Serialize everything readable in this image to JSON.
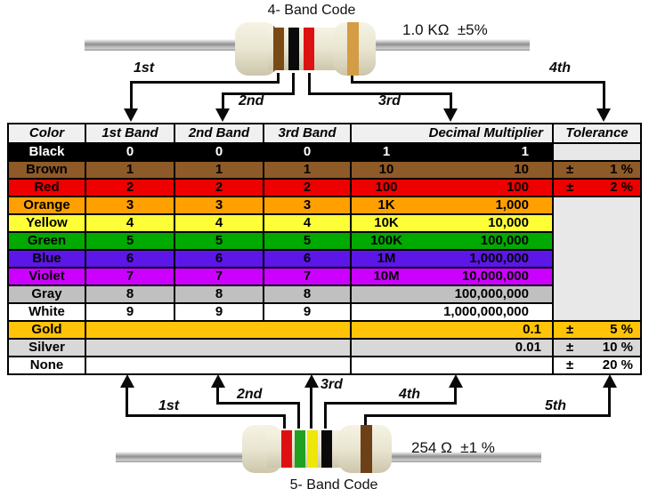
{
  "top_section": {
    "title": "4- Band Code",
    "value_label": "1.0 KΩ  ±5%",
    "arrow_labels": [
      "1st",
      "2nd",
      "3rd",
      "4th"
    ],
    "resistor_bands": [
      {
        "name": "brown",
        "hex": "#7a4a14"
      },
      {
        "name": "black",
        "hex": "#0a0a0a"
      },
      {
        "name": "red",
        "hex": "#dd1111"
      },
      {
        "name": "gold",
        "hex": "#d49c44"
      }
    ]
  },
  "bottom_section": {
    "title": "5- Band Code",
    "value_label": "254 Ω  ±1 %",
    "arrow_labels": [
      "1st",
      "2nd",
      "3rd",
      "4th",
      "5th"
    ],
    "resistor_bands": [
      {
        "name": "red",
        "hex": "#dd1111"
      },
      {
        "name": "green",
        "hex": "#22a022"
      },
      {
        "name": "yellow",
        "hex": "#efe707"
      },
      {
        "name": "black",
        "hex": "#0a0a0a"
      },
      {
        "name": "brown",
        "hex": "#6e4018"
      }
    ]
  },
  "table": {
    "headers": [
      "Color",
      "1st Band",
      "2nd Band",
      "3rd Band",
      "Decimal Multiplier",
      "Tolerance"
    ],
    "header_bg": "#f0f0f0",
    "empty_cell_bg": "#e8e8e8",
    "rows": [
      {
        "color": "Black",
        "bg": "#000000",
        "fg": "#ffffff",
        "band1": "0",
        "band2": "0",
        "band3": "0",
        "multiplier_short": "1",
        "multiplier_full": "1",
        "tolerance_cell": "empty"
      },
      {
        "color": "Brown",
        "bg": "#8e5a28",
        "fg": "#000000",
        "band1": "1",
        "band2": "1",
        "band3": "1",
        "multiplier_short": "10",
        "multiplier_full": "10",
        "tolerance_cell": "value",
        "tolerance_sign": "±",
        "tolerance_value": "1 %"
      },
      {
        "color": "Red",
        "bg": "#ee0000",
        "fg": "#000000",
        "band1": "2",
        "band2": "2",
        "band3": "2",
        "multiplier_short": "100",
        "multiplier_full": "100",
        "tolerance_cell": "value",
        "tolerance_sign": "±",
        "tolerance_value": "2 %"
      },
      {
        "color": "Orange",
        "bg": "#ffa000",
        "fg": "#000000",
        "band1": "3",
        "band2": "3",
        "band3": "3",
        "multiplier_short": "1K",
        "multiplier_full": "1,000",
        "tolerance_cell": "merged-start"
      },
      {
        "color": "Yellow",
        "bg": "#ffff38",
        "fg": "#000000",
        "band1": "4",
        "band2": "4",
        "band3": "4",
        "multiplier_short": "10K",
        "multiplier_full": "10,000",
        "tolerance_cell": "none"
      },
      {
        "color": "Green",
        "bg": "#00aa00",
        "fg": "#000000",
        "band1": "5",
        "band2": "5",
        "band3": "5",
        "multiplier_short": "100K",
        "multiplier_full": "100,000",
        "tolerance_cell": "none"
      },
      {
        "color": "Blue",
        "bg": "#5c16e8",
        "fg": "#000000",
        "band1": "6",
        "band2": "6",
        "band3": "6",
        "multiplier_short": "1M",
        "multiplier_full": "1,000,000",
        "tolerance_cell": "none"
      },
      {
        "color": "Violet",
        "bg": "#cc00ff",
        "fg": "#000000",
        "band1": "7",
        "band2": "7",
        "band3": "7",
        "multiplier_short": "10M",
        "multiplier_full": "10,000,000",
        "tolerance_cell": "none"
      },
      {
        "color": "Gray",
        "bg": "#c0c0c0",
        "fg": "#000000",
        "band1": "8",
        "band2": "8",
        "band3": "8",
        "multiplier_short": "",
        "multiplier_full": "100,000,000",
        "tolerance_cell": "none"
      },
      {
        "color": "White",
        "bg": "#ffffff",
        "fg": "#000000",
        "band1": "9",
        "band2": "9",
        "band3": "9",
        "multiplier_short": "",
        "multiplier_full": "1,000,000,000",
        "tolerance_cell": "none"
      },
      {
        "color": "Gold",
        "bg": "#ffc408",
        "fg": "#000000",
        "special": true,
        "multiplier_full": "0.1",
        "tolerance_cell": "value",
        "tolerance_sign": "±",
        "tolerance_value": "5 %"
      },
      {
        "color": "Silver",
        "bg": "#d8d8d8",
        "fg": "#000000",
        "special": true,
        "multiplier_full": "0.01",
        "tolerance_cell": "value",
        "tolerance_sign": "±",
        "tolerance_value": "10 %"
      },
      {
        "color": "None",
        "bg": "#ffffff",
        "fg": "#000000",
        "special": true,
        "multiplier_full": "",
        "tolerance_cell": "value",
        "tolerance_sign": "±",
        "tolerance_value": "20 %"
      }
    ]
  }
}
